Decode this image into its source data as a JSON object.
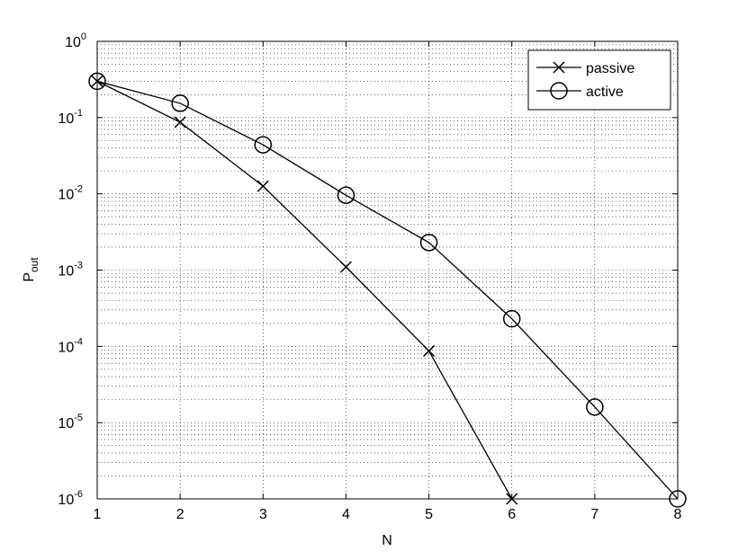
{
  "chart_data": {
    "type": "line",
    "x_label": "N",
    "y_label": {
      "text": "P",
      "sub": "out"
    },
    "xlim": [
      1,
      8
    ],
    "xticks": [
      1,
      2,
      3,
      4,
      5,
      6,
      7,
      8
    ],
    "ylim": [
      1e-06,
      1
    ],
    "yticks": [
      {
        "value": 1e-06,
        "label": "10",
        "sup": "-6"
      },
      {
        "value": 1e-05,
        "label": "10",
        "sup": "-5"
      },
      {
        "value": 0.0001,
        "label": "10",
        "sup": "-4"
      },
      {
        "value": 0.001,
        "label": "10",
        "sup": "-3"
      },
      {
        "value": 0.01,
        "label": "10",
        "sup": "-2"
      },
      {
        "value": 0.1,
        "label": "10",
        "sup": "-1"
      },
      {
        "value": 1,
        "label": "10",
        "sup": "0"
      }
    ],
    "log_y": true,
    "grid": true,
    "minor_grid": true,
    "legend": "northeast",
    "series": [
      {
        "name": "passive",
        "color": "#000000",
        "marker": "x",
        "x": [
          1,
          2,
          3,
          4,
          5,
          6
        ],
        "values": [
          0.3,
          0.087,
          0.0126,
          0.0011,
          8.7e-05,
          1e-06
        ]
      },
      {
        "name": "active",
        "color": "#000000",
        "marker": "o",
        "x": [
          1,
          2,
          3,
          4,
          5,
          6,
          7,
          8
        ],
        "values": [
          0.3,
          0.154,
          0.044,
          0.0096,
          0.0023,
          0.00023,
          1.6e-05,
          1e-06
        ]
      }
    ]
  }
}
